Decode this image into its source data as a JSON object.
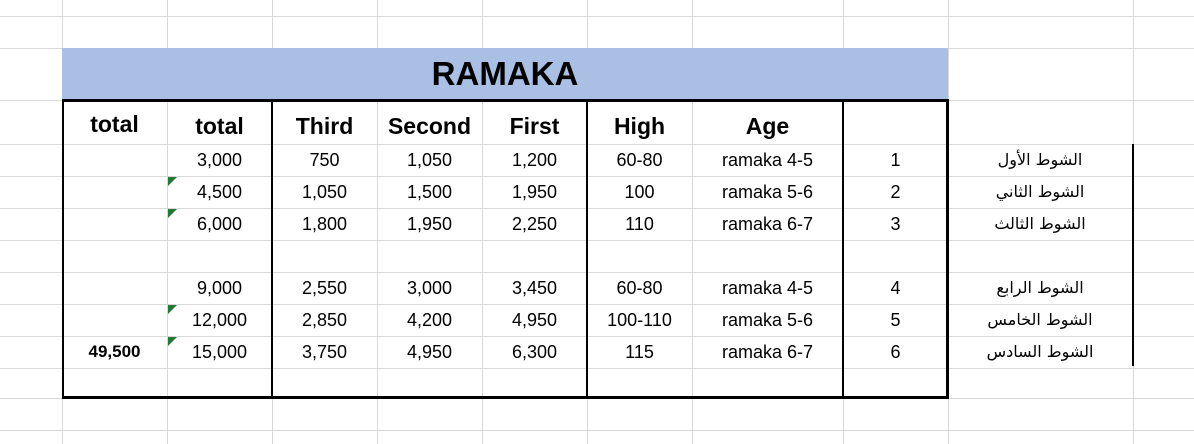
{
  "sheet": {
    "title": "RAMAKA",
    "grand_total_label": "total",
    "grand_total_value": "49,500",
    "headers": {
      "total": "total",
      "third": "Third",
      "second": "Second",
      "first": "First",
      "high": "High",
      "age": "Age"
    },
    "rows": [
      {
        "total": "3,000",
        "third": "750",
        "second": "1,050",
        "first": "1,200",
        "high": "60-80",
        "age": "ramaka 4-5",
        "num": "1",
        "name": "الشوط الأول"
      },
      {
        "total": "4,500",
        "third": "1,050",
        "second": "1,500",
        "first": "1,950",
        "high": "100",
        "age": "ramaka 5-6",
        "num": "2",
        "name": "الشوط الثاني"
      },
      {
        "total": "6,000",
        "third": "1,800",
        "second": "1,950",
        "first": "2,250",
        "high": "110",
        "age": "ramaka 6-7",
        "num": "3",
        "name": "الشوط الثالث"
      },
      {
        "total": "9,000",
        "third": "2,550",
        "second": "3,000",
        "first": "3,450",
        "high": "60-80",
        "age": "ramaka 4-5",
        "num": "4",
        "name": "الشوط الرابع"
      },
      {
        "total": "12,000",
        "third": "2,850",
        "second": "4,200",
        "first": "4,950",
        "high": "100-110",
        "age": "ramaka 5-6",
        "num": "5",
        "name": "الشوط الخامس"
      },
      {
        "total": "15,000",
        "third": "3,750",
        "second": "4,950",
        "first": "6,300",
        "high": "115",
        "age": "ramaka 6-7",
        "num": "6",
        "name": "الشوط السادس"
      }
    ],
    "colors": {
      "title_band": "#a9bfe3",
      "gridline": "#d9d9d9",
      "comment_marker": "#1e7b34"
    }
  }
}
